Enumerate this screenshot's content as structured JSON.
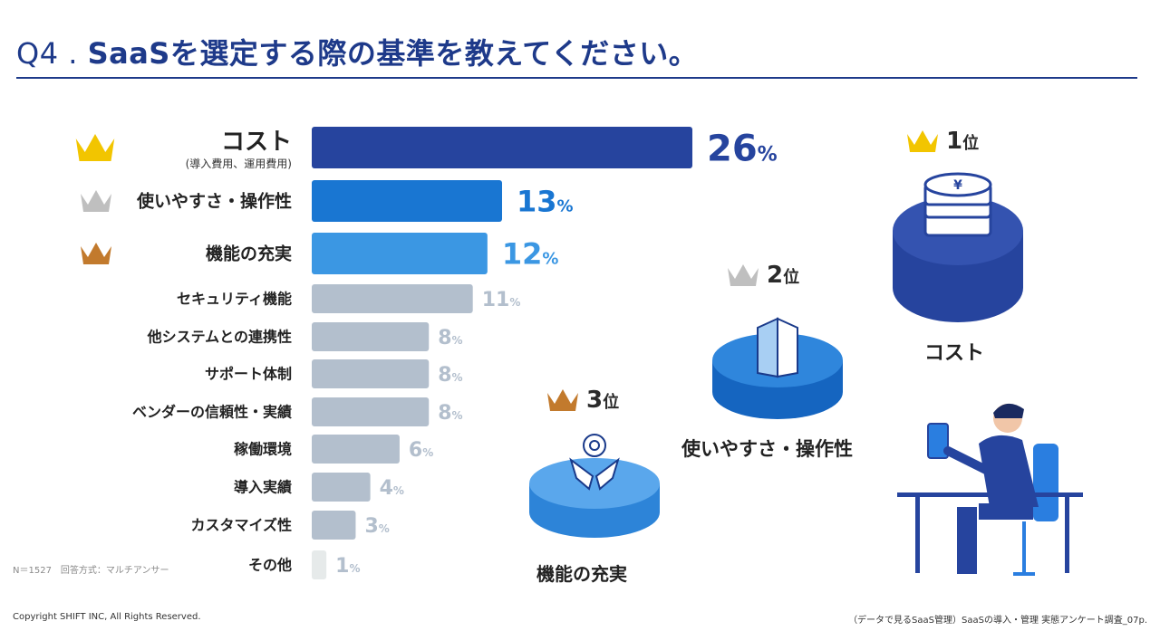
{
  "title": {
    "q": "Q4 .",
    "text": "SaaSを選定する際の基準を教えてください。"
  },
  "chart_data": {
    "type": "bar",
    "orientation": "horizontal",
    "categories": [
      "コスト",
      "使いやすさ・操作性",
      "機能の充実",
      "セキュリティ機能",
      "他システムとの連携性",
      "サポート体制",
      "ベンダーの信頼性・実績",
      "稼働環境",
      "導入実績",
      "カスタマイズ性",
      "その他"
    ],
    "category_note": "(導入費用、運用費用)",
    "values": [
      26,
      13,
      12,
      11,
      8,
      8,
      8,
      6,
      4,
      3,
      1
    ],
    "value_suffix": "%",
    "bar_colors": [
      "#26449e",
      "#1976d2",
      "#3b97e3",
      "#b3bfcd",
      "#b3bfcd",
      "#b3bfcd",
      "#b3bfcd",
      "#b3bfcd",
      "#b3bfcd",
      "#b3bfcd",
      "#e6eaea"
    ],
    "value_colors": [
      "#26449e",
      "#1976d2",
      "#3b97e3",
      "#b3bfcd",
      "#b3bfcd",
      "#b3bfcd",
      "#b3bfcd",
      "#b3bfcd",
      "#b3bfcd",
      "#b3bfcd",
      "#b3bfcd"
    ],
    "crown_colors": [
      "#f2c500",
      "#bfbfbf",
      "#c27a2d"
    ],
    "xlim": [
      0,
      26
    ]
  },
  "podium": {
    "first": {
      "rank": "1",
      "unit": "位",
      "label": "コスト",
      "yen": "¥"
    },
    "second": {
      "rank": "2",
      "unit": "位",
      "label": "使いやすさ・操作性"
    },
    "third": {
      "rank": "3",
      "unit": "位",
      "label": "機能の充実"
    }
  },
  "footnote": "N＝1527　回答方式：マルチアンサー",
  "copyright": "Copyright SHIFT INC, All Rights Reserved.",
  "source": "（データで見るSaaS管理）SaaSの導入・管理 実態アンケート調査_07p.",
  "colors": {
    "navy": "#1e3a8a",
    "bar1": "#26449e",
    "blue": "#1976d2",
    "lightblue": "#3b97e3",
    "grey": "#b3bfcd",
    "gold": "#f2c500",
    "silver": "#bfbfbf",
    "bronze": "#c27a2d"
  }
}
